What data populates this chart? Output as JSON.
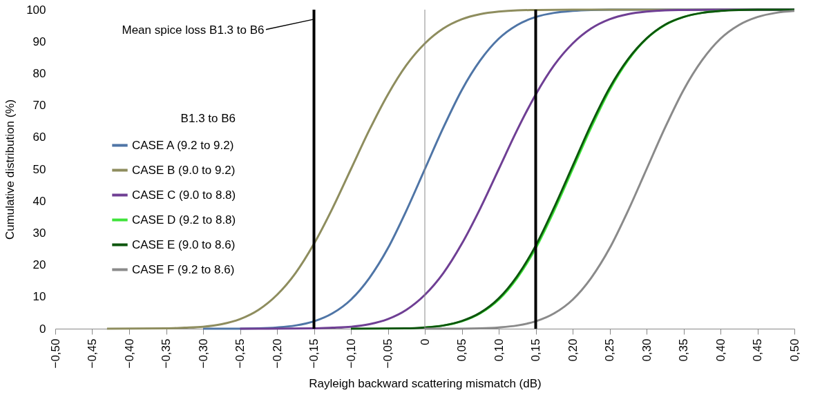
{
  "chart_data": {
    "type": "line",
    "xlabel": "Rayleigh backward scattering mismatch  (dB)",
    "ylabel": "Cumulative distribution  (%)",
    "legend_title": "B1.3 to B6",
    "legend": "left",
    "grid": false,
    "marker": "none",
    "line_style": "solid",
    "xlim": [
      -0.5,
      0.5
    ],
    "ylim": [
      0,
      100
    ],
    "xticks": [
      {
        "value": -0.5,
        "label": "−0,50"
      },
      {
        "value": -0.45,
        "label": "−0,45"
      },
      {
        "value": -0.4,
        "label": "−0,40"
      },
      {
        "value": -0.35,
        "label": "−0,35"
      },
      {
        "value": -0.3,
        "label": "−0,30"
      },
      {
        "value": -0.25,
        "label": "−0,25"
      },
      {
        "value": -0.2,
        "label": "−0,20"
      },
      {
        "value": -0.15,
        "label": "−0,15"
      },
      {
        "value": -0.1,
        "label": "−0,10"
      },
      {
        "value": -0.05,
        "label": "−0,05"
      },
      {
        "value": 0,
        "label": "0"
      },
      {
        "value": 0.05,
        "label": "0,05"
      },
      {
        "value": 0.1,
        "label": "0,10"
      },
      {
        "value": 0.15,
        "label": "0,15"
      },
      {
        "value": 0.2,
        "label": "0,20"
      },
      {
        "value": 0.25,
        "label": "0,25"
      },
      {
        "value": 0.3,
        "label": "0,30"
      },
      {
        "value": 0.35,
        "label": "0,35"
      },
      {
        "value": 0.4,
        "label": "0,40"
      },
      {
        "value": 0.45,
        "label": "0,45"
      },
      {
        "value": 0.5,
        "label": "0,50"
      }
    ],
    "yticks": [
      0,
      10,
      20,
      30,
      40,
      50,
      60,
      70,
      80,
      90,
      100
    ],
    "ref_lines": [
      {
        "axis": "x",
        "value": -0.15,
        "color": "#000000"
      },
      {
        "axis": "x",
        "value": 0.15,
        "color": "#000000"
      }
    ],
    "annotations": [
      {
        "text": "Mean spice loss B1.3 to B6",
        "x": -0.15,
        "y": 97
      }
    ],
    "series": [
      {
        "name": "CASE A (9.2 to 9.2)",
        "color": "#4f75a6",
        "x": [
          -0.3,
          -0.25,
          -0.225,
          -0.2,
          -0.175,
          -0.15,
          -0.125,
          -0.1,
          -0.075,
          -0.05,
          -0.025,
          0,
          0.025,
          0.05,
          0.075,
          0.1,
          0.125,
          0.15,
          0.175,
          0.2,
          0.225,
          0.25,
          0.5
        ],
        "values": [
          0,
          0,
          0.1,
          0.4,
          1.0,
          2.3,
          4.8,
          9.1,
          15.9,
          25.2,
          37,
          50,
          63,
          74.8,
          84.1,
          90.9,
          95.2,
          97.7,
          99.0,
          99.6,
          99.9,
          100,
          100
        ]
      },
      {
        "name": "CASE B (9.0 to 9.2)",
        "color": "#8e8d5e",
        "x": [
          -0.43,
          -0.35,
          -0.325,
          -0.3,
          -0.275,
          -0.25,
          -0.225,
          -0.2,
          -0.175,
          -0.15,
          -0.125,
          -0.1,
          -0.075,
          -0.05,
          -0.025,
          0,
          0.025,
          0.05,
          0.075,
          0.1,
          0.125,
          0.15,
          0.2,
          0.5
        ],
        "values": [
          0,
          0.1,
          0.3,
          0.6,
          1.4,
          3.0,
          5.9,
          10.6,
          17.4,
          26.6,
          37.7,
          50,
          62.3,
          73.4,
          82.6,
          89.4,
          94.1,
          97.0,
          98.6,
          99.4,
          99.8,
          99.9,
          100,
          100
        ]
      },
      {
        "name": "CASE C (9.0 to 8.8)",
        "color": "#6f3f94",
        "x": [
          -0.25,
          -0.15,
          -0.125,
          -0.1,
          -0.075,
          -0.05,
          -0.025,
          0,
          0.025,
          0.05,
          0.075,
          0.1,
          0.125,
          0.15,
          0.175,
          0.2,
          0.225,
          0.25,
          0.275,
          0.3,
          0.325,
          0.35,
          0.4,
          0.5
        ],
        "values": [
          0,
          0.1,
          0.3,
          0.6,
          1.4,
          3.0,
          5.9,
          10.6,
          17.4,
          26.6,
          37.7,
          50,
          62.3,
          73.4,
          82.6,
          89.4,
          94.1,
          97.0,
          98.6,
          99.4,
          99.8,
          99.9,
          100,
          100
        ]
      },
      {
        "name": "CASE D (9.2 to 8.8)",
        "color": "#3fe33a",
        "x": [
          0,
          0.025,
          0.05,
          0.075,
          0.1,
          0.125,
          0.15,
          0.175,
          0.2,
          0.225,
          0.25,
          0.275,
          0.3,
          0.325,
          0.35,
          0.375,
          0.4
        ],
        "values": [
          0.4,
          1.0,
          2.3,
          4.8,
          9.1,
          15.9,
          25.2,
          37,
          50,
          63,
          74.8,
          84.1,
          90.9,
          95.2,
          97.7,
          99.0,
          99.6
        ]
      },
      {
        "name": "CASE E (9.0 to 8.6)",
        "color": "#0d560d",
        "x": [
          -0.1,
          -0.025,
          0,
          0.025,
          0.05,
          0.075,
          0.1,
          0.125,
          0.15,
          0.175,
          0.2,
          0.225,
          0.25,
          0.275,
          0.3,
          0.325,
          0.35,
          0.375,
          0.4,
          0.425,
          0.45,
          0.5
        ],
        "values": [
          0,
          0.1,
          0.4,
          1.0,
          2.4,
          5.0,
          9.5,
          16.5,
          26,
          38,
          51,
          64,
          75.5,
          84.5,
          91,
          95.3,
          97.7,
          99.0,
          99.6,
          99.9,
          100,
          100
        ]
      },
      {
        "name": "CASE F (9.2 to 8.6)",
        "color": "#8a8a8a",
        "x": [
          0.0,
          0.05,
          0.075,
          0.1,
          0.125,
          0.15,
          0.175,
          0.2,
          0.225,
          0.25,
          0.275,
          0.3,
          0.325,
          0.35,
          0.375,
          0.4,
          0.425,
          0.45,
          0.475,
          0.5
        ],
        "values": [
          0,
          0,
          0.1,
          0.4,
          1.0,
          2.3,
          4.8,
          9.1,
          15.9,
          25.2,
          37,
          50,
          63,
          74.8,
          84.1,
          90.9,
          95.2,
          97.7,
          99.0,
          99.6
        ]
      }
    ]
  }
}
